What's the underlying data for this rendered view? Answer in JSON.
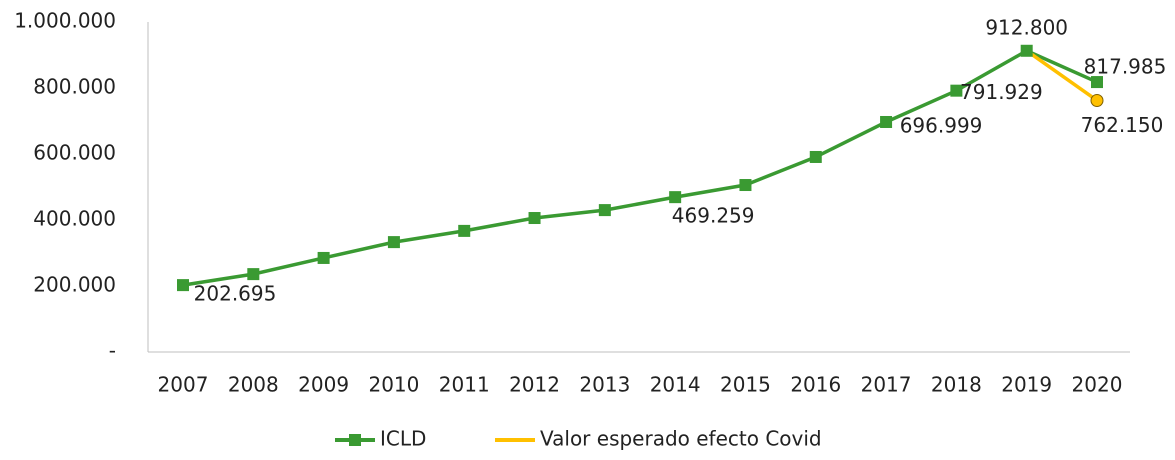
{
  "chart_data": {
    "type": "line",
    "categories": [
      "2007",
      "2008",
      "2009",
      "2010",
      "2011",
      "2012",
      "2013",
      "2014",
      "2015",
      "2016",
      "2017",
      "2018",
      "2019",
      "2020"
    ],
    "series": [
      {
        "name": "ICLD",
        "color": "#3a9a32",
        "values": [
          202695,
          236000,
          285000,
          333000,
          367000,
          406000,
          430000,
          469259,
          506000,
          591000,
          696999,
          791929,
          912800,
          817985
        ],
        "value_labels": [
          "202.695",
          null,
          null,
          null,
          null,
          null,
          null,
          "469.259",
          null,
          null,
          "696.999",
          "791.929",
          "912.800",
          "817.985"
        ]
      },
      {
        "name": "Valor esperado efecto Covid",
        "color": "#ffc000",
        "values": [
          null,
          null,
          null,
          null,
          null,
          null,
          null,
          null,
          null,
          null,
          null,
          null,
          912800,
          762150
        ],
        "value_labels": [
          null,
          null,
          null,
          null,
          null,
          null,
          null,
          null,
          null,
          null,
          null,
          null,
          null,
          "762.150"
        ]
      }
    ],
    "ylim": [
      0,
      1000000
    ],
    "yticks": [
      {
        "value": 0,
        "label": "-"
      },
      {
        "value": 200000,
        "label": "200.000"
      },
      {
        "value": 400000,
        "label": "400.000"
      },
      {
        "value": 600000,
        "label": "600.000"
      },
      {
        "value": 800000,
        "label": "800.000"
      },
      {
        "value": 1000000,
        "label": "1.000.000"
      }
    ],
    "grid": false,
    "legend": "bottom"
  }
}
